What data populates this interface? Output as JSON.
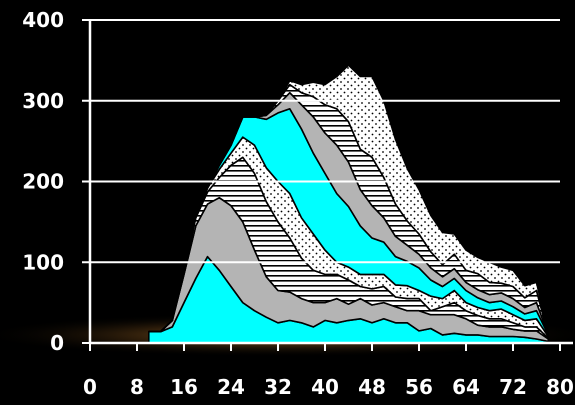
{
  "chart_data": {
    "type": "area",
    "stacked": true,
    "title": "",
    "xlabel": "",
    "ylabel": "",
    "xlim": [
      0,
      80
    ],
    "ylim": [
      0,
      400
    ],
    "x_ticks": [
      "0",
      "8",
      "16",
      "24",
      "32",
      "40",
      "48",
      "56",
      "64",
      "72",
      "80"
    ],
    "y_ticks": [
      "0",
      "100",
      "200",
      "300",
      "400"
    ],
    "grid": true,
    "legend": "none",
    "x": [
      10,
      12,
      14,
      16,
      18,
      20,
      22,
      24,
      26,
      28,
      30,
      32,
      34,
      36,
      38,
      40,
      42,
      44,
      46,
      48,
      50,
      52,
      54,
      56,
      58,
      60,
      62,
      64,
      66,
      68,
      70,
      72,
      74,
      76,
      78
    ],
    "series": [
      {
        "fill": "#00ffff",
        "pattern": "solid",
        "values": [
          14,
          14,
          20,
          50,
          80,
          107,
          90,
          70,
          50,
          40,
          32,
          25,
          28,
          25,
          20,
          28,
          25,
          28,
          30,
          25,
          30,
          25,
          25,
          15,
          18,
          10,
          12,
          10,
          10,
          8,
          8,
          8,
          7,
          5,
          2
        ]
      },
      {
        "fill": "#b4b4b4",
        "pattern": "solid",
        "values": [
          0,
          0,
          8,
          35,
          65,
          65,
          90,
          100,
          100,
          75,
          50,
          40,
          35,
          30,
          30,
          22,
          30,
          20,
          25,
          22,
          20,
          20,
          15,
          25,
          17,
          25,
          23,
          20,
          12,
          12,
          12,
          9,
          8,
          10,
          3
        ]
      },
      {
        "fill": "#ffffff",
        "pattern": "horizontal-lines",
        "values": [
          0,
          0,
          0,
          5,
          10,
          15,
          25,
          50,
          80,
          95,
          93,
          85,
          67,
          50,
          40,
          35,
          30,
          30,
          15,
          20,
          20,
          12,
          15,
          15,
          5,
          10,
          15,
          10,
          12,
          10,
          10,
          8,
          5,
          5,
          1
        ]
      },
      {
        "fill": "#ffffff",
        "pattern": "dots",
        "values": [
          0,
          0,
          0,
          0,
          2,
          5,
          10,
          15,
          25,
          35,
          42,
          50,
          55,
          50,
          45,
          30,
          15,
          16,
          15,
          18,
          15,
          15,
          16,
          10,
          18,
          10,
          15,
          10,
          10,
          10,
          12,
          10,
          8,
          10,
          2
        ]
      },
      {
        "fill": "#00ffff",
        "pattern": "solid",
        "values": [
          0,
          0,
          0,
          0,
          0,
          0,
          5,
          10,
          25,
          35,
          60,
          85,
          105,
          110,
          100,
          95,
          85,
          75,
          60,
          45,
          40,
          35,
          30,
          28,
          20,
          15,
          15,
          15,
          12,
          10,
          10,
          10,
          8,
          10,
          2
        ]
      },
      {
        "fill": "#b4b4b4",
        "pattern": "solid",
        "values": [
          0,
          0,
          0,
          0,
          0,
          0,
          0,
          0,
          0,
          0,
          5,
          10,
          20,
          30,
          45,
          50,
          60,
          55,
          45,
          40,
          30,
          25,
          20,
          17,
          15,
          12,
          12,
          10,
          10,
          10,
          10,
          10,
          8,
          10,
          0
        ]
      },
      {
        "fill": "#ffffff",
        "pattern": "horizontal-lines",
        "values": [
          0,
          0,
          0,
          0,
          0,
          0,
          0,
          0,
          0,
          0,
          0,
          5,
          10,
          15,
          25,
          35,
          45,
          50,
          50,
          60,
          50,
          40,
          30,
          25,
          20,
          15,
          18,
          15,
          20,
          15,
          12,
          15,
          12,
          15,
          0
        ]
      },
      {
        "fill": "#ffffff",
        "pattern": "dots",
        "values": [
          0,
          0,
          0,
          0,
          0,
          0,
          0,
          0,
          0,
          0,
          0,
          0,
          5,
          10,
          18,
          25,
          40,
          70,
          90,
          100,
          95,
          80,
          65,
          55,
          45,
          40,
          25,
          25,
          20,
          25,
          20,
          20,
          15,
          10,
          2
        ]
      }
    ]
  }
}
